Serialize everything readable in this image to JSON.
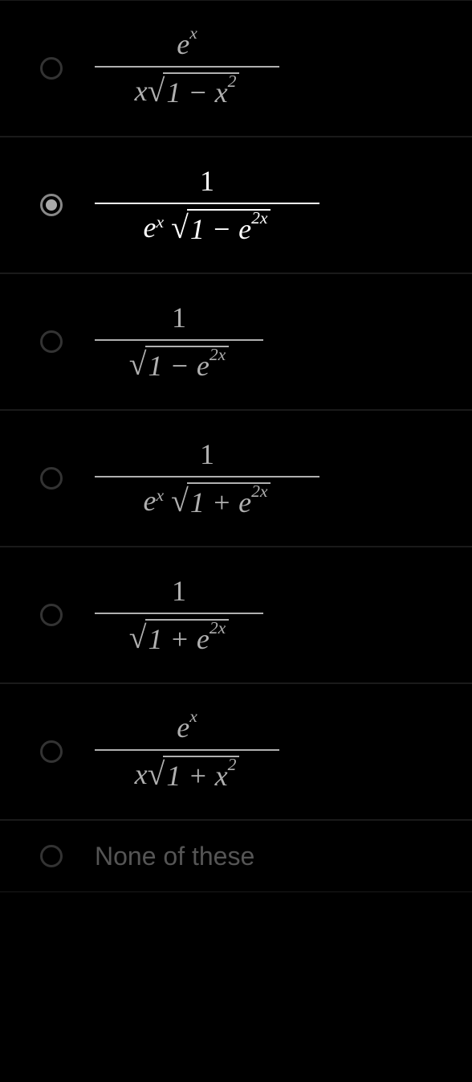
{
  "quiz": {
    "type": "multiple-choice",
    "selected_index": 1,
    "colors": {
      "background": "#000000",
      "text_default": "#b0b0b0",
      "text_selected": "#ffffff",
      "border": "#1a1a1a",
      "radio_border": "#333333",
      "radio_selected_border": "#888888",
      "radio_fill": "#aaaaaa",
      "none_text": "#555555"
    },
    "options": [
      {
        "numerator": {
          "base": "e",
          "sup": "x"
        },
        "denominator": {
          "prefix": "x",
          "sqrt": {
            "inner": "1 − x",
            "inner_sup": "2"
          }
        },
        "selected": false
      },
      {
        "numerator": {
          "text": "1"
        },
        "denominator": {
          "prefix_base": "e",
          "prefix_sup": "x",
          "sqrt": {
            "inner": "1 − e",
            "inner_sup": "2x"
          }
        },
        "selected": true
      },
      {
        "numerator": {
          "text": "1"
        },
        "denominator": {
          "sqrt": {
            "inner": "1 − e",
            "inner_sup": "2x"
          }
        },
        "selected": false
      },
      {
        "numerator": {
          "text": "1"
        },
        "denominator": {
          "prefix_base": "e",
          "prefix_sup": "x",
          "sqrt": {
            "inner": "1 + e",
            "inner_sup": "2x"
          }
        },
        "selected": false
      },
      {
        "numerator": {
          "text": "1"
        },
        "denominator": {
          "sqrt": {
            "inner": "1 + e",
            "inner_sup": "2x"
          }
        },
        "selected": false
      },
      {
        "numerator": {
          "base": "e",
          "sup": "x"
        },
        "denominator": {
          "prefix": "x",
          "sqrt": {
            "inner": "1 + x",
            "inner_sup": "2"
          }
        },
        "selected": false
      },
      {
        "text": "None of these",
        "selected": false
      }
    ]
  }
}
